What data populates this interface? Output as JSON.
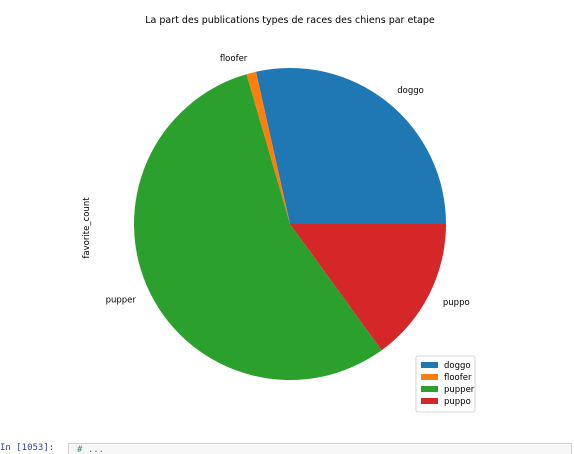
{
  "chart_data": {
    "type": "pie",
    "title": "La part des publications types de races des chiens par etape",
    "ylabel": "favorite_count",
    "categories": [
      "doggo",
      "floofer",
      "pupper",
      "puppo"
    ],
    "values": [
      28.5,
      1.0,
      55.5,
      15.0
    ],
    "colors": [
      "#1f77b4",
      "#ff7f0e",
      "#2ca02c",
      "#d62728"
    ],
    "start_angle_deg": 0,
    "direction": "counterclockwise",
    "legend": {
      "position": "bottom-right",
      "entries": [
        "doggo",
        "floofer",
        "pupper",
        "puppo"
      ]
    }
  },
  "notebook": {
    "prompt": "In [1053]:",
    "input_text": "# ..."
  }
}
